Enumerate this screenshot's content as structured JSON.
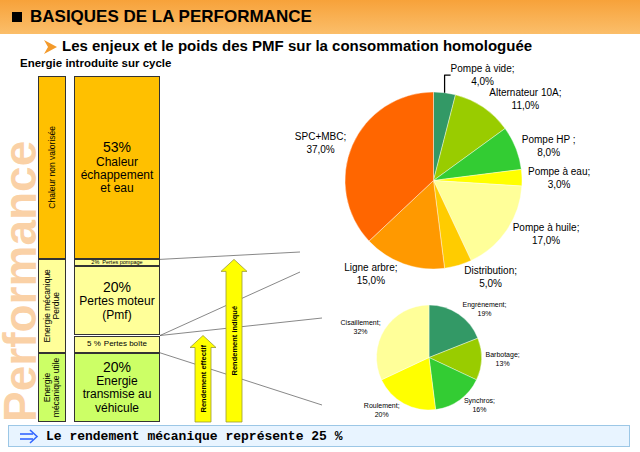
{
  "header": {
    "title": "BASIQUES DE LA PERFORMANCE",
    "subtitle": "Les enjeux et le poids des PMF sur la consommation homologuée"
  },
  "watermark": "Performance",
  "energy_diagram": {
    "title": "Energie introduite sur cycle",
    "groups": [
      {
        "label": "Chaleur non valorisée",
        "color": "#FFC000",
        "segments": [
          {
            "value": 53,
            "value_label": "53%",
            "label": "Chaleur échappement et eau",
            "color": "#FFC000"
          }
        ]
      },
      {
        "label": "Energie mécanique Perdue",
        "color": "#FFFF99",
        "segments": [
          {
            "value": 2,
            "value_label": "2%",
            "label": "Pertes pompage",
            "color": "#FFFF99"
          },
          {
            "value": 20,
            "value_label": "20%",
            "label": "Pertes moteur (Pmf)",
            "color": "#FFFF99"
          },
          {
            "value": 5,
            "value_label": "5 %",
            "label": "Pertes boîte",
            "color": "#FFFF99"
          }
        ]
      },
      {
        "label": "Energie mécanique utile",
        "color": "#CCFF66",
        "segments": [
          {
            "value": 20,
            "value_label": "20%",
            "label": "Energie transmise au véhicule",
            "color": "#CCFF66"
          }
        ]
      }
    ],
    "arrows": [
      "Rendement effectif",
      "Rendement indiqué"
    ]
  },
  "chart_data": [
    {
      "type": "pie",
      "categories": [
        "Pompe à vide;",
        "Alternateur 10A;",
        "Pompe HP ;",
        "Pompe à eau;",
        "Pompe à huile;",
        "Distribution;",
        "Ligne arbre;",
        "SPC+MBC;"
      ],
      "values": [
        4,
        11,
        8,
        3,
        17,
        5,
        15,
        37
      ],
      "value_labels": [
        "4,0%",
        "11,0%",
        "8,0%",
        "3,0%",
        "17,0%",
        "5,0%",
        "15,0%",
        "37,0%"
      ],
      "colors": [
        "#339966",
        "#99CC00",
        "#33CC33",
        "#FFFF00",
        "#FFFF99",
        "#FFCC00",
        "#FF9900",
        "#FF6600"
      ],
      "data_labels": true
    },
    {
      "type": "pie",
      "categories": [
        "Engrènement;",
        "Barbotage;",
        "Synchros;",
        "Roulement;",
        "Cisaillement;"
      ],
      "values": [
        19,
        13,
        16,
        20,
        32
      ],
      "value_labels": [
        "19%",
        "13%",
        "16%",
        "20%",
        "32%"
      ],
      "colors": [
        "#339966",
        "#99CC00",
        "#33CC33",
        "#FFFF00",
        "#FFFF99"
      ],
      "data_labels": true
    }
  ],
  "footer": "Le rendement mécanique représente 25 %"
}
